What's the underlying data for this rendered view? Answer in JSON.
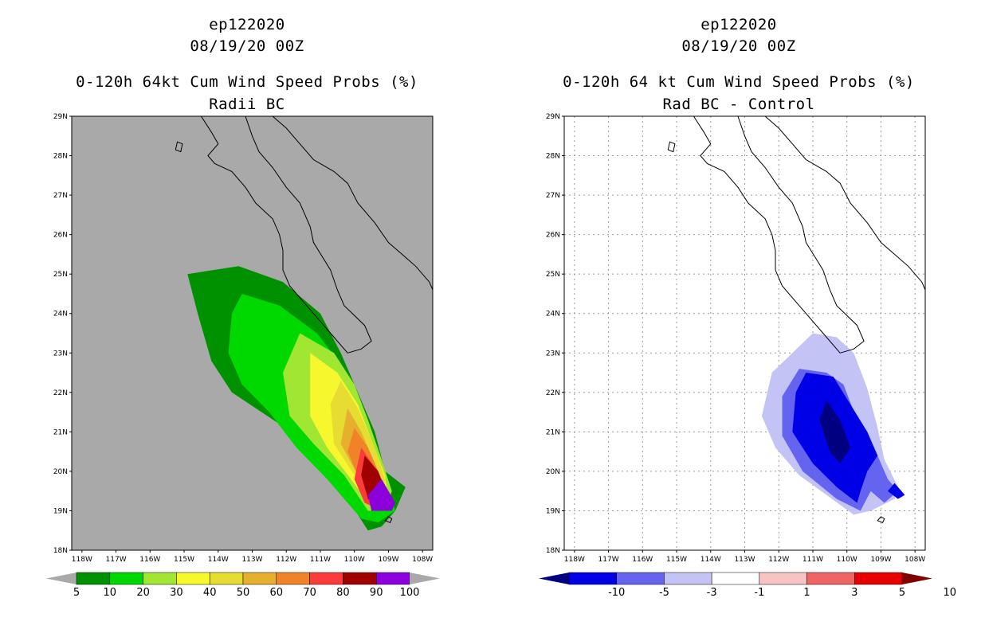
{
  "chart_data": [
    {
      "type": "heatmap",
      "panel": "left",
      "storm_id": "ep122020",
      "datetime": "08/19/20 00Z",
      "title": "0-120h 64kt Cum Wind Speed Probs (%)",
      "subtitle": "Radii BC",
      "x_ticks": [
        "118W",
        "117W",
        "116W",
        "115W",
        "114W",
        "113W",
        "112W",
        "111W",
        "110W",
        "109W",
        "108W"
      ],
      "y_ticks": [
        "18N",
        "19N",
        "20N",
        "21N",
        "22N",
        "23N",
        "24N",
        "25N",
        "26N",
        "27N",
        "28N",
        "29N"
      ],
      "xlim": [
        -118.3,
        -107.7
      ],
      "ylim": [
        18,
        29
      ],
      "background_color": "#a9a9a9",
      "grid": false,
      "colorbar": {
        "labels": [
          "5",
          "10",
          "20",
          "30",
          "40",
          "50",
          "60",
          "70",
          "80",
          "90",
          "100"
        ],
        "colors": [
          "#009100",
          "#00d900",
          "#a0e632",
          "#f7f72e",
          "#e6dc32",
          "#e6af2d",
          "#f08228",
          "#fa3c3c",
          "#a00000",
          "#8c00dc"
        ],
        "extend_colors": [
          "#a9a9a9",
          "#a9a9a9"
        ]
      },
      "contours": [
        {
          "level": 5,
          "color": "#009100",
          "points": [
            [
              -114.9,
              25.0
            ],
            [
              -113.4,
              25.2
            ],
            [
              -112.1,
              24.8
            ],
            [
              -111.0,
              24.0
            ],
            [
              -110.4,
              23.0
            ],
            [
              -109.9,
              22.0
            ],
            [
              -109.4,
              21.0
            ],
            [
              -109.1,
              20.0
            ],
            [
              -108.5,
              19.6
            ],
            [
              -108.8,
              19.0
            ],
            [
              -109.2,
              18.6
            ],
            [
              -109.6,
              18.5
            ],
            [
              -110.2,
              19.3
            ],
            [
              -111.0,
              20.1
            ],
            [
              -112.2,
              21.2
            ],
            [
              -113.6,
              22.0
            ],
            [
              -114.2,
              22.8
            ],
            [
              -114.6,
              24.0
            ]
          ]
        },
        {
          "level": 10,
          "color": "#00d900",
          "points": [
            [
              -113.3,
              24.5
            ],
            [
              -112.2,
              24.2
            ],
            [
              -111.1,
              23.5
            ],
            [
              -110.3,
              22.6
            ],
            [
              -109.8,
              21.6
            ],
            [
              -109.4,
              20.6
            ],
            [
              -109.0,
              19.6
            ],
            [
              -108.8,
              19.0
            ],
            [
              -109.3,
              18.7
            ],
            [
              -109.8,
              18.8
            ],
            [
              -110.8,
              19.8
            ],
            [
              -111.7,
              20.6
            ],
            [
              -112.5,
              21.5
            ],
            [
              -113.3,
              22.2
            ],
            [
              -113.7,
              23.0
            ],
            [
              -113.6,
              24.0
            ]
          ]
        },
        {
          "level": 20,
          "color": "#a0e632",
          "points": [
            [
              -111.6,
              23.5
            ],
            [
              -110.6,
              23.0
            ],
            [
              -110.0,
              22.2
            ],
            [
              -109.6,
              21.3
            ],
            [
              -109.2,
              20.3
            ],
            [
              -108.9,
              19.5
            ],
            [
              -109.1,
              19.0
            ],
            [
              -109.6,
              19.0
            ],
            [
              -110.3,
              19.9
            ],
            [
              -111.2,
              20.7
            ],
            [
              -111.9,
              21.4
            ],
            [
              -112.1,
              22.5
            ]
          ]
        },
        {
          "level": 30,
          "color": "#f7f72e",
          "points": [
            [
              -111.3,
              23.0
            ],
            [
              -110.5,
              22.5
            ],
            [
              -109.9,
              21.7
            ],
            [
              -109.5,
              20.8
            ],
            [
              -109.1,
              19.9
            ],
            [
              -109.0,
              19.2
            ],
            [
              -109.5,
              19.1
            ],
            [
              -110.1,
              19.8
            ],
            [
              -110.8,
              20.6
            ],
            [
              -111.3,
              21.4
            ]
          ]
        },
        {
          "level": 40,
          "color": "#e6dc32",
          "points": [
            [
              -110.4,
              22.3
            ],
            [
              -109.9,
              21.6
            ],
            [
              -109.4,
              20.6
            ],
            [
              -109.1,
              19.8
            ],
            [
              -109.1,
              19.2
            ],
            [
              -109.5,
              19.1
            ],
            [
              -110.0,
              19.9
            ],
            [
              -110.6,
              20.7
            ],
            [
              -110.7,
              21.7
            ]
          ]
        },
        {
          "level": 50,
          "color": "#e6af2d",
          "points": [
            [
              -110.2,
              21.6
            ],
            [
              -109.8,
              21.0
            ],
            [
              -109.4,
              20.2
            ],
            [
              -109.1,
              19.4
            ],
            [
              -109.5,
              19.2
            ],
            [
              -109.9,
              19.9
            ],
            [
              -110.4,
              20.7
            ]
          ]
        },
        {
          "level": 60,
          "color": "#f08228",
          "points": [
            [
              -110.0,
              21.1
            ],
            [
              -109.6,
              20.6
            ],
            [
              -109.2,
              19.8
            ],
            [
              -109.2,
              19.3
            ],
            [
              -109.6,
              19.3
            ],
            [
              -109.9,
              19.9
            ],
            [
              -110.2,
              20.5
            ]
          ]
        },
        {
          "level": 70,
          "color": "#fa3c3c",
          "points": [
            [
              -109.8,
              20.6
            ],
            [
              -109.4,
              20.1
            ],
            [
              -109.0,
              19.3
            ],
            [
              -109.2,
              19.0
            ],
            [
              -109.7,
              19.2
            ],
            [
              -110.0,
              19.8
            ]
          ]
        },
        {
          "level": 80,
          "color": "#a00000",
          "points": [
            [
              -109.7,
              20.4
            ],
            [
              -109.3,
              20.0
            ],
            [
              -109.0,
              19.3
            ],
            [
              -109.3,
              19.1
            ],
            [
              -109.6,
              19.3
            ],
            [
              -109.8,
              19.9
            ]
          ]
        },
        {
          "level": 90,
          "color": "#8c00dc",
          "points": [
            [
              -109.2,
              19.8
            ],
            [
              -108.8,
              19.2
            ],
            [
              -108.9,
              19.0
            ],
            [
              -109.5,
              19.0
            ],
            [
              -109.6,
              19.4
            ]
          ]
        }
      ]
    },
    {
      "type": "heatmap",
      "panel": "right",
      "storm_id": "ep122020",
      "datetime": "08/19/20 00Z",
      "title": "0-120h 64 kt Cum Wind Speed Probs (%)",
      "subtitle": "Rad BC - Control",
      "x_ticks": [
        "118W",
        "117W",
        "116W",
        "115W",
        "114W",
        "113W",
        "112W",
        "111W",
        "110W",
        "109W",
        "108W"
      ],
      "y_ticks": [
        "18N",
        "19N",
        "20N",
        "21N",
        "22N",
        "23N",
        "24N",
        "25N",
        "26N",
        "27N",
        "28N",
        "29N"
      ],
      "xlim": [
        -118.3,
        -107.7
      ],
      "ylim": [
        18,
        29
      ],
      "background_color": "#ffffff",
      "grid": true,
      "colorbar": {
        "labels": [
          "-10",
          "-5",
          "-3",
          "-1",
          "1",
          "3",
          "5",
          "10"
        ],
        "colors": [
          "#0000e6",
          "#6464f0",
          "#c3c3f5",
          "#ffffff",
          "#f8c3c3",
          "#f06464",
          "#e60000"
        ],
        "extend_colors": [
          "#000080",
          "#800000"
        ]
      },
      "contours": [
        {
          "level": -1,
          "color": "#c3c3f5",
          "points": [
            [
              -111.0,
              23.5
            ],
            [
              -110.3,
              23.4
            ],
            [
              -109.8,
              23.0
            ],
            [
              -109.4,
              22.1
            ],
            [
              -109.1,
              21.1
            ],
            [
              -108.9,
              20.3
            ],
            [
              -108.5,
              19.6
            ],
            [
              -108.6,
              19.3
            ],
            [
              -109.3,
              19.0
            ],
            [
              -109.8,
              18.9
            ],
            [
              -110.6,
              19.4
            ],
            [
              -111.4,
              19.9
            ],
            [
              -112.1,
              20.6
            ],
            [
              -112.5,
              21.4
            ],
            [
              -112.2,
              22.5
            ]
          ]
        },
        {
          "level": -3,
          "color": "#6464f0",
          "points": [
            [
              -111.4,
              22.6
            ],
            [
              -110.6,
              22.5
            ],
            [
              -110.1,
              22.2
            ],
            [
              -109.7,
              21.3
            ],
            [
              -109.2,
              20.6
            ],
            [
              -108.8,
              19.8
            ],
            [
              -108.5,
              19.5
            ],
            [
              -108.9,
              19.2
            ],
            [
              -109.3,
              19.5
            ],
            [
              -109.6,
              19.0
            ],
            [
              -110.3,
              19.3
            ],
            [
              -111.3,
              20.0
            ],
            [
              -111.9,
              20.9
            ],
            [
              -111.9,
              21.9
            ]
          ]
        },
        {
          "level": -5,
          "color": "#0000e6",
          "points": [
            [
              -111.2,
              22.5
            ],
            [
              -110.4,
              22.4
            ],
            [
              -109.9,
              21.7
            ],
            [
              -109.4,
              21.0
            ],
            [
              -109.1,
              20.4
            ],
            [
              -109.4,
              20.0
            ],
            [
              -109.6,
              19.5
            ],
            [
              -109.7,
              19.2
            ],
            [
              -110.3,
              19.6
            ],
            [
              -111.0,
              20.2
            ],
            [
              -111.6,
              21.0
            ],
            [
              -111.5,
              22.0
            ]
          ]
        },
        {
          "level": -10,
          "color": "#000080",
          "points": [
            [
              -110.6,
              21.8
            ],
            [
              -110.2,
              21.3
            ],
            [
              -109.9,
              20.6
            ],
            [
              -110.2,
              20.2
            ],
            [
              -110.5,
              20.5
            ],
            [
              -110.8,
              21.3
            ]
          ]
        },
        {
          "level": -5,
          "color": "#0000e6",
          "points": [
            [
              -108.6,
              19.7
            ],
            [
              -108.3,
              19.4
            ],
            [
              -108.5,
              19.3
            ],
            [
              -108.8,
              19.5
            ]
          ]
        }
      ]
    }
  ]
}
